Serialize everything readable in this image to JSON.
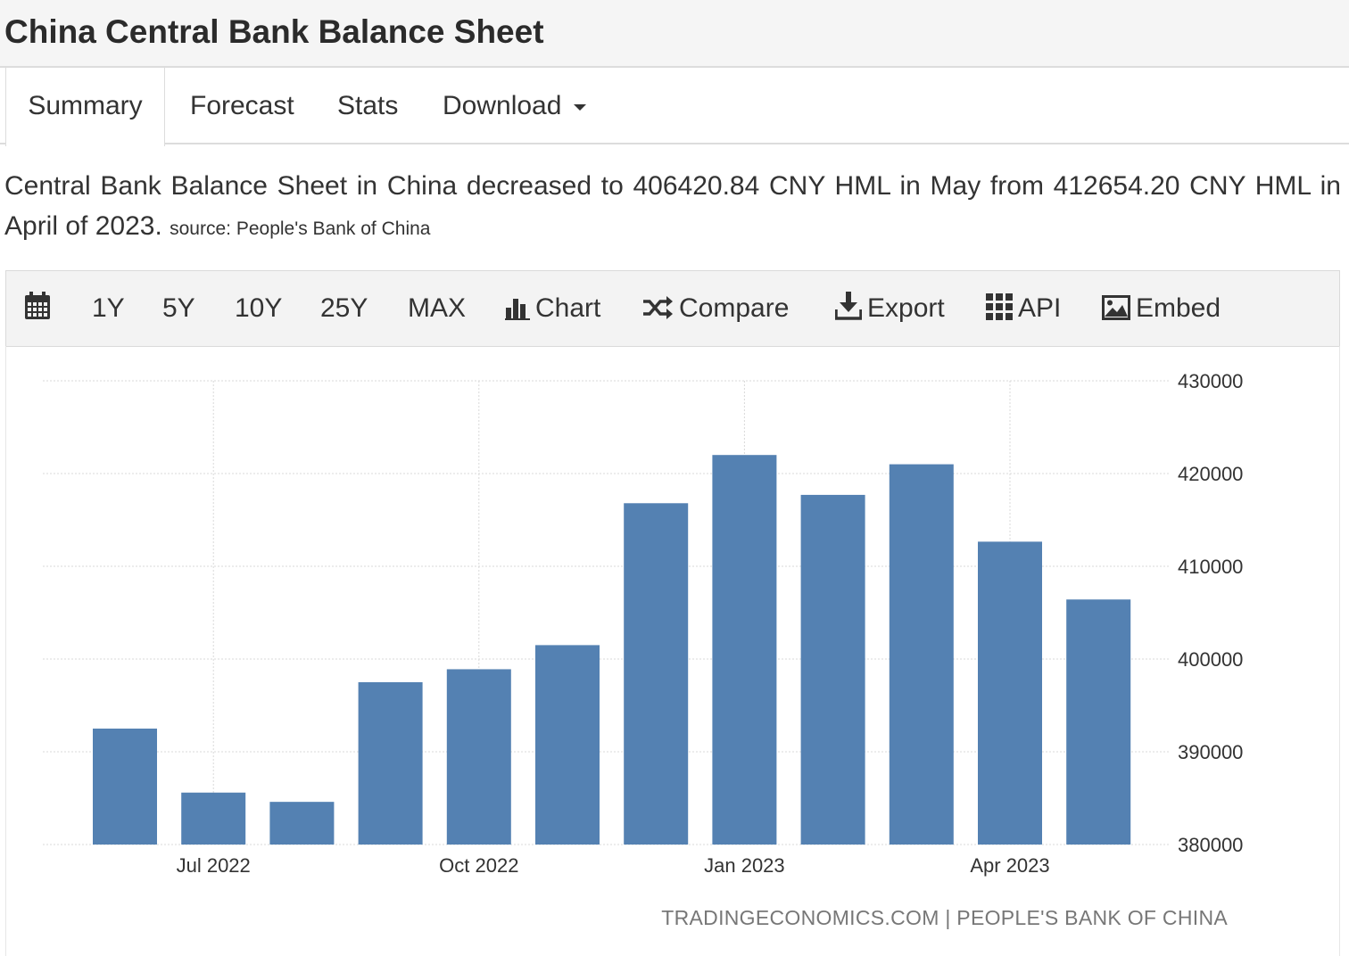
{
  "page": {
    "title": "China Central Bank Balance Sheet"
  },
  "tabs": [
    {
      "label": "Summary"
    },
    {
      "label": "Forecast"
    },
    {
      "label": "Stats"
    },
    {
      "label": "Download"
    }
  ],
  "description": {
    "text": "Central Bank Balance Sheet in China decreased to 406420.84 CNY HML in May from 412654.20 CNY HML in April of 2023.",
    "source": "source: People's Bank of China"
  },
  "toolbar": {
    "calendar_icon": "calendar-icon",
    "ranges": [
      "1Y",
      "5Y",
      "10Y",
      "25Y",
      "MAX"
    ],
    "chart_label": "Chart",
    "compare_label": "Compare",
    "export_label": "Export",
    "api_label": "API",
    "embed_label": "Embed"
  },
  "colors": {
    "bar": "#5481b2",
    "grid": "#d9d9d9",
    "accent_text": "#333333"
  },
  "chart_data": {
    "type": "bar",
    "categories": [
      "Jun 2022",
      "Jul 2022",
      "Aug 2022",
      "Sep 2022",
      "Oct 2022",
      "Nov 2022",
      "Dec 2022",
      "Jan 2023",
      "Feb 2023",
      "Mar 2023",
      "Apr 2023",
      "May 2023"
    ],
    "values": [
      392500,
      385600,
      384600,
      397500,
      398900,
      401500,
      416800,
      422000,
      417700,
      421000,
      412654.2,
      406420.84
    ],
    "x_tick_labels": [
      "Jul 2022",
      "Oct 2022",
      "Jan 2023",
      "Apr 2023"
    ],
    "y_ticks": [
      380000,
      390000,
      400000,
      410000,
      420000,
      430000
    ],
    "ylim": [
      380000,
      430000
    ],
    "y_axis_side": "right",
    "grid": true,
    "legend": "none",
    "credit": "TRADINGECONOMICS.COM | PEOPLE'S BANK OF CHINA"
  }
}
